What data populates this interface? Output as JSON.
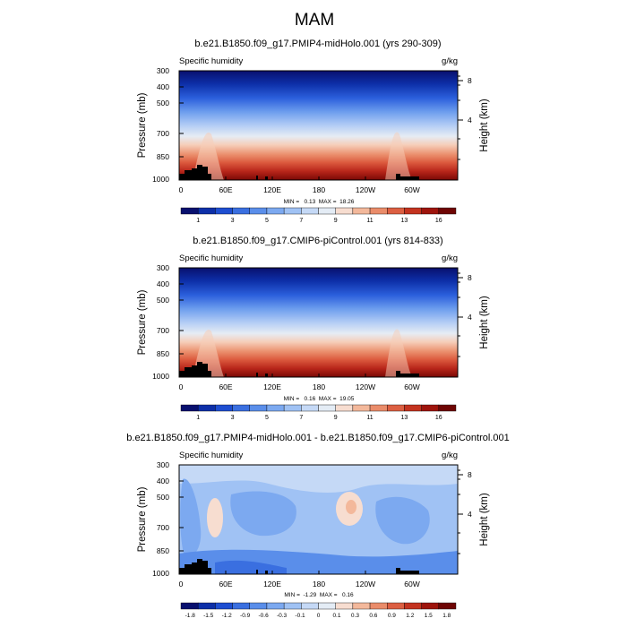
{
  "figure_title": "MAM",
  "chart_data": [
    {
      "type": "heatmap",
      "title": "b.e21.B1850.f09_g17.PMIP4-midHolo.001 (yrs 290-309)",
      "subtitle_left": "Specific humidity",
      "subtitle_right": "g/kg",
      "xlabel": "",
      "ylabel": "Pressure (mb)",
      "ylabel_right": "Height (km)",
      "x_ticks": [
        "0",
        "60E",
        "120E",
        "180",
        "120W",
        "60W"
      ],
      "y_ticks": [
        "300",
        "400",
        "500",
        "700",
        "850",
        "1000"
      ],
      "y_ticks_right": [
        "8",
        "4"
      ],
      "stats": "MIN =   0.13  MAX =  18.26",
      "colorbar_labels": [
        "1",
        "3",
        "5",
        "7",
        "9",
        "11",
        "13",
        "16"
      ]
    },
    {
      "type": "heatmap",
      "title": "b.e21.B1850.f09_g17.CMIP6-piControl.001 (yrs 814-833)",
      "subtitle_left": "Specific humidity",
      "subtitle_right": "g/kg",
      "xlabel": "",
      "ylabel": "Pressure (mb)",
      "ylabel_right": "Height (km)",
      "x_ticks": [
        "0",
        "60E",
        "120E",
        "180",
        "120W",
        "60W"
      ],
      "y_ticks": [
        "300",
        "400",
        "500",
        "700",
        "850",
        "1000"
      ],
      "y_ticks_right": [
        "8",
        "4"
      ],
      "stats": "MIN =   0.16  MAX =  19.05",
      "colorbar_labels": [
        "1",
        "3",
        "5",
        "7",
        "9",
        "11",
        "13",
        "16"
      ]
    },
    {
      "type": "heatmap",
      "title": "b.e21.B1850.f09_g17.PMIP4-midHolo.001 - b.e21.B1850.f09_g17.CMIP6-piControl.001",
      "subtitle_left": "Specific humidity",
      "subtitle_right": "g/kg",
      "xlabel": "",
      "ylabel": "Pressure (mb)",
      "ylabel_right": "Height (km)",
      "x_ticks": [
        "0",
        "60E",
        "120E",
        "180",
        "120W",
        "60W"
      ],
      "y_ticks": [
        "300",
        "400",
        "500",
        "700",
        "850",
        "1000"
      ],
      "y_ticks_right": [
        "8",
        "4"
      ],
      "stats": "MIN =  -1.29  MAX =   0.16",
      "colorbar_labels": [
        "-1.8",
        "-1.5",
        "-1.2",
        "-0.9",
        "-0.6",
        "-0.3",
        "-0.1",
        "0",
        "0.1",
        "0.3",
        "0.6",
        "0.9",
        "1.2",
        "1.5",
        "1.8"
      ]
    }
  ],
  "colors": {
    "colormap": [
      "#08106e",
      "#0d2fa8",
      "#1e4ed1",
      "#3a6fe0",
      "#5a8eea",
      "#7ca9f0",
      "#a0c2f4",
      "#c5d9f6",
      "#e4ecf5",
      "#f7ddd0",
      "#f3b89b",
      "#ea8c6a",
      "#dc5f42",
      "#c3331f",
      "#9e140c",
      "#6e0504"
    ],
    "diff_colormap": [
      "#08106e",
      "#0d2fa8",
      "#1e4ed1",
      "#3a6fe0",
      "#5a8eea",
      "#7ca9f0",
      "#a0c2f4",
      "#c5d9f6",
      "#e4ecf5",
      "#f7ddd0",
      "#f3b89b",
      "#ea8c6a",
      "#dc5f42",
      "#c3331f",
      "#9e140c",
      "#6e0504"
    ],
    "topography": "#000000"
  }
}
